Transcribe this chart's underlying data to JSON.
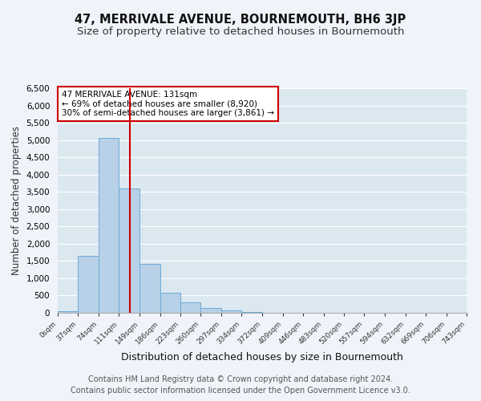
{
  "title": "47, MERRIVALE AVENUE, BOURNEMOUTH, BH6 3JP",
  "subtitle": "Size of property relative to detached houses in Bournemouth",
  "xlabel": "Distribution of detached houses by size in Bournemouth",
  "ylabel": "Number of detached properties",
  "bar_edges": [
    0,
    37,
    74,
    111,
    149,
    186,
    223,
    260,
    297,
    334,
    372,
    409,
    446,
    483,
    520,
    557,
    594,
    632,
    669,
    706,
    743
  ],
  "bar_heights": [
    50,
    1640,
    5060,
    3600,
    1420,
    580,
    300,
    145,
    70,
    30,
    10,
    3,
    0,
    0,
    0,
    0,
    0,
    0,
    0,
    0
  ],
  "bar_color": "#b8d0e8",
  "bar_edge_color": "#6aaad4",
  "vline_x": 131,
  "vline_color": "#cc0000",
  "ylim": [
    0,
    6500
  ],
  "yticks": [
    0,
    500,
    1000,
    1500,
    2000,
    2500,
    3000,
    3500,
    4000,
    4500,
    5000,
    5500,
    6000,
    6500
  ],
  "annotation_title": "47 MERRIVALE AVENUE: 131sqm",
  "annotation_line1": "← 69% of detached houses are smaller (8,920)",
  "annotation_line2": "30% of semi-detached houses are larger (3,861) →",
  "annotation_box_color": "#cc0000",
  "footer1": "Contains HM Land Registry data © Crown copyright and database right 2024.",
  "footer2": "Contains public sector information licensed under the Open Government Licence v3.0.",
  "bg_color": "#f0f4fa",
  "plot_bg_color": "#dce8f0",
  "grid_color": "#ffffff",
  "title_fontsize": 10.5,
  "subtitle_fontsize": 9.5,
  "xlabel_fontsize": 9,
  "ylabel_fontsize": 8.5,
  "footer_fontsize": 7
}
